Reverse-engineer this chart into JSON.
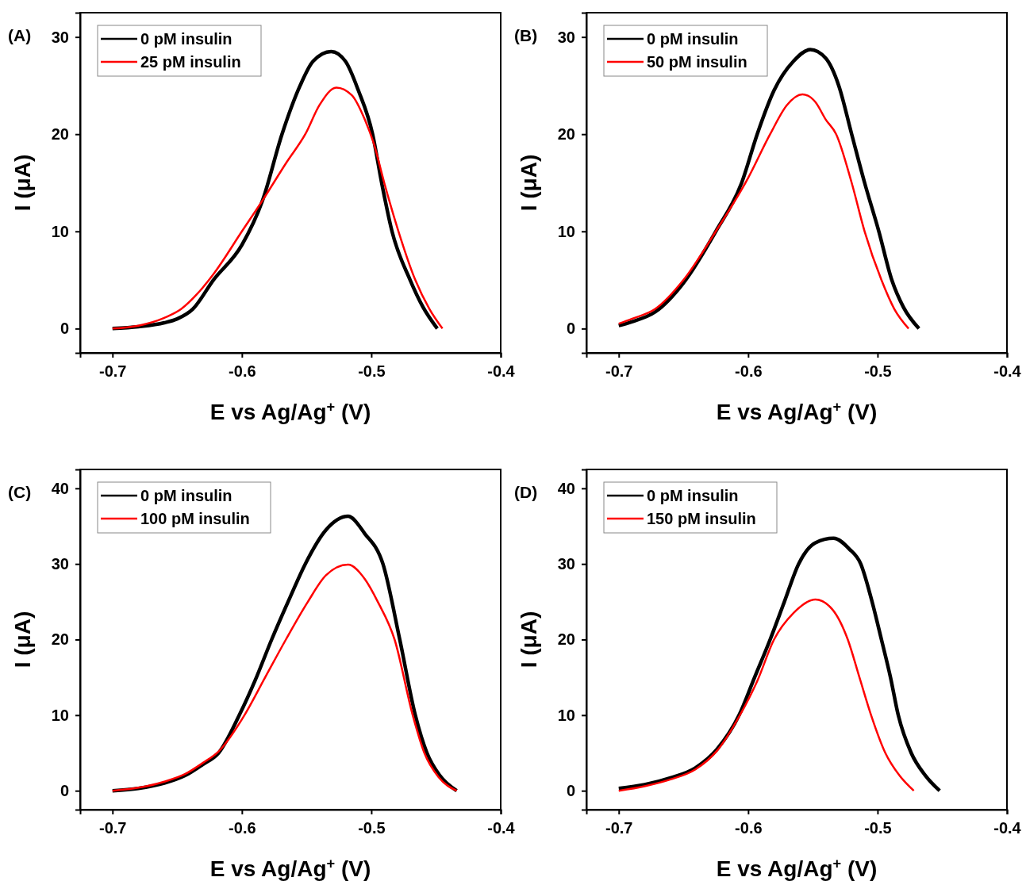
{
  "chart_data": [
    {
      "type": "line",
      "title": "(A)",
      "xlabel": "E vs Ag/Ag$^{+}$ (V)",
      "ylabel": "I (μA)",
      "xlim": [
        -0.725,
        -0.4
      ],
      "xticks": [
        -0.7,
        -0.6,
        -0.5,
        -0.4
      ],
      "ylim": [
        -2.5,
        32.5
      ],
      "yticks": [
        0,
        10,
        20,
        30
      ],
      "legend": "top left",
      "grid": false,
      "line_style": "solid",
      "series": [
        {
          "name": "0 pM insulin",
          "color": "#000000",
          "x": [
            -0.7,
            -0.68,
            -0.66,
            -0.65,
            -0.638,
            -0.622,
            -0.6,
            -0.584,
            -0.569,
            -0.555,
            -0.545,
            -0.531,
            -0.52,
            -0.51,
            -0.499,
            -0.492,
            -0.484,
            -0.47,
            -0.46,
            -0.449
          ],
          "values": [
            0,
            0.2,
            0.6,
            1,
            2,
            5,
            8.6,
            13.2,
            20,
            25,
            27.5,
            28.5,
            27.5,
            24.5,
            20,
            15,
            10,
            5,
            2.2,
            0
          ]
        },
        {
          "name": "25 pM insulin",
          "color": "#ff0000",
          "x": [
            -0.7,
            -0.68,
            -0.66,
            -0.647,
            -0.635,
            -0.622,
            -0.6,
            -0.584,
            -0.565,
            -0.551,
            -0.54,
            -0.527,
            -0.515,
            -0.505,
            -0.498,
            -0.49,
            -0.479,
            -0.466,
            -0.455,
            -0.445
          ],
          "values": [
            0,
            0.3,
            1.1,
            2,
            3.5,
            5.6,
            10,
            13.2,
            17.2,
            20,
            23,
            24.8,
            24,
            21.5,
            19,
            15,
            10,
            5,
            2,
            0
          ]
        }
      ]
    },
    {
      "type": "line",
      "title": "(B)",
      "xlabel": "E vs Ag/Ag$^{+}$ (V)",
      "ylabel": "I (μA)",
      "xlim": [
        -0.725,
        -0.4
      ],
      "xticks": [
        -0.7,
        -0.6,
        -0.5,
        -0.4
      ],
      "ylim": [
        -2.5,
        32.5
      ],
      "yticks": [
        0,
        10,
        20,
        30
      ],
      "legend": "top left",
      "grid": false,
      "line_style": "solid",
      "series": [
        {
          "name": "0 pM insulin",
          "color": "#000000",
          "x": [
            -0.7,
            -0.69,
            -0.672,
            -0.65,
            -0.625,
            -0.605,
            -0.593,
            -0.58,
            -0.565,
            -0.552,
            -0.54,
            -0.53,
            -0.52,
            -0.51,
            -0.499,
            -0.489,
            -0.48,
            -0.468
          ],
          "values": [
            0.3,
            0.7,
            1.7,
            4.7,
            10,
            15,
            20,
            24.5,
            27.5,
            28.7,
            27.8,
            25,
            20,
            15,
            10,
            5,
            2.2,
            0
          ]
        },
        {
          "name": "50 pM insulin",
          "color": "#ff0000",
          "x": [
            -0.7,
            -0.69,
            -0.672,
            -0.65,
            -0.625,
            -0.6,
            -0.583,
            -0.57,
            -0.558,
            -0.548,
            -0.54,
            -0.532,
            -0.52,
            -0.51,
            -0.497,
            -0.487,
            -0.476
          ],
          "values": [
            0.5,
            1,
            2,
            5,
            10,
            15.5,
            20,
            23,
            24.1,
            23.3,
            21.5,
            20,
            15,
            10,
            5,
            2,
            0
          ]
        }
      ]
    },
    {
      "type": "line",
      "title": "(C)",
      "xlabel": "E vs Ag/Ag$^{+}$ (V)",
      "ylabel": "I (μA)",
      "xlim": [
        -0.725,
        -0.4
      ],
      "xticks": [
        -0.7,
        -0.6,
        -0.5,
        -0.4
      ],
      "ylim": [
        -2.5,
        42.5
      ],
      "yticks": [
        0,
        10,
        20,
        30,
        40
      ],
      "legend": "top left",
      "grid": false,
      "line_style": "solid",
      "series": [
        {
          "name": "0 pM insulin",
          "color": "#000000",
          "x": [
            -0.7,
            -0.68,
            -0.66,
            -0.644,
            -0.63,
            -0.618,
            -0.602,
            -0.59,
            -0.577,
            -0.563,
            -0.551,
            -0.535,
            -0.518,
            -0.505,
            -0.491,
            -0.478,
            -0.466,
            -0.457,
            -0.447,
            -0.434
          ],
          "values": [
            0,
            0.3,
            1,
            2,
            3.5,
            5,
            10,
            14.5,
            20,
            25.5,
            30,
            34.5,
            36.3,
            34,
            30,
            20,
            10,
            5,
            2,
            0
          ]
        },
        {
          "name": "100 pM insulin",
          "color": "#ff0000",
          "x": [
            -0.7,
            -0.68,
            -0.66,
            -0.644,
            -0.63,
            -0.618,
            -0.598,
            -0.582,
            -0.566,
            -0.549,
            -0.535,
            -0.518,
            -0.505,
            -0.495,
            -0.482,
            -0.468,
            -0.459,
            -0.448,
            -0.434
          ],
          "values": [
            0,
            0.4,
            1.2,
            2.2,
            3.7,
            5.2,
            10,
            15,
            20,
            25,
            28.5,
            29.9,
            28,
            25,
            20,
            10,
            5,
            1.8,
            0
          ]
        }
      ]
    },
    {
      "type": "line",
      "title": "(D)",
      "xlabel": "E vs Ag/Ag$^{+}$ (V)",
      "ylabel": "I (μA)",
      "xlim": [
        -0.725,
        -0.4
      ],
      "xticks": [
        -0.7,
        -0.6,
        -0.5,
        -0.4
      ],
      "ylim": [
        -2.5,
        42.5
      ],
      "yticks": [
        0,
        10,
        20,
        30,
        40
      ],
      "legend": "top left",
      "grid": false,
      "line_style": "solid",
      "series": [
        {
          "name": "0 pM insulin",
          "color": "#000000",
          "x": [
            -0.7,
            -0.68,
            -0.66,
            -0.641,
            -0.624,
            -0.607,
            -0.595,
            -0.583,
            -0.572,
            -0.561,
            -0.548,
            -0.534,
            -0.522,
            -0.513,
            -0.505,
            -0.497,
            -0.49,
            -0.484,
            -0.474,
            -0.463,
            -0.452
          ],
          "values": [
            0.3,
            0.8,
            1.7,
            3,
            5.5,
            10,
            15,
            20,
            25,
            30,
            32.8,
            33.4,
            32,
            30,
            25.5,
            20,
            15,
            10,
            5,
            2,
            0
          ]
        },
        {
          "name": "150 pM insulin",
          "color": "#ff0000",
          "x": [
            -0.7,
            -0.68,
            -0.66,
            -0.641,
            -0.624,
            -0.607,
            -0.593,
            -0.58,
            -0.565,
            -0.548,
            -0.535,
            -0.523,
            -0.514,
            -0.505,
            -0.494,
            -0.483,
            -0.472
          ],
          "values": [
            0,
            0.6,
            1.5,
            2.8,
            5.3,
            9.8,
            14.5,
            20,
            23.5,
            25.3,
            24,
            20,
            15,
            10,
            5,
            2,
            0
          ]
        }
      ]
    }
  ]
}
